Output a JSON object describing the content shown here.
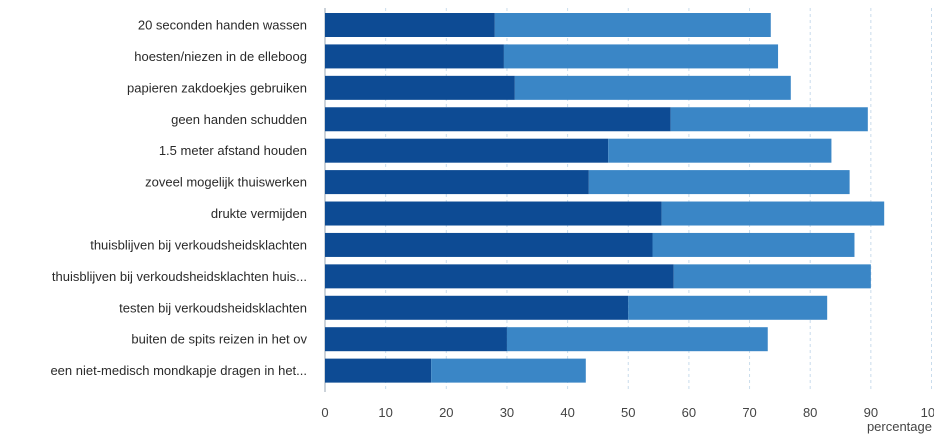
{
  "chart_data": {
    "type": "bar",
    "stacked": true,
    "orientation": "horizontal",
    "categories": [
      "20 seconden handen wassen",
      "hoesten/niezen in de elleboog",
      "papieren zakdoekjes gebruiken",
      "geen handen schudden",
      "1.5 meter afstand houden",
      "zoveel mogelijk thuiswerken",
      "drukte vermijden",
      "thuisblijven bij verkoudsheidsklachten",
      "thuisblijven bij verkoudsheidsklachten huis...",
      "testen bij verkoudsheidsklachten",
      "buiten de spits reizen in het ov",
      "een niet-medisch mondkapje dragen in het..."
    ],
    "series": [
      {
        "color": "#0d4b94",
        "values": [
          28,
          29.5,
          31.3,
          57,
          46.7,
          43.5,
          55.5,
          54,
          57.5,
          50,
          30,
          17.5
        ]
      },
      {
        "color": "#3a86c6",
        "values": [
          45.5,
          45.2,
          45.5,
          32.5,
          36.8,
          43,
          36.7,
          33.3,
          32.5,
          32.8,
          43,
          25.5
        ]
      }
    ],
    "xlim": [
      0,
      100
    ],
    "xticks": [
      "0",
      "10",
      "20",
      "30",
      "40",
      "50",
      "60",
      "70",
      "80",
      "90",
      "100"
    ],
    "xlabel": "percentage",
    "grid": true
  }
}
